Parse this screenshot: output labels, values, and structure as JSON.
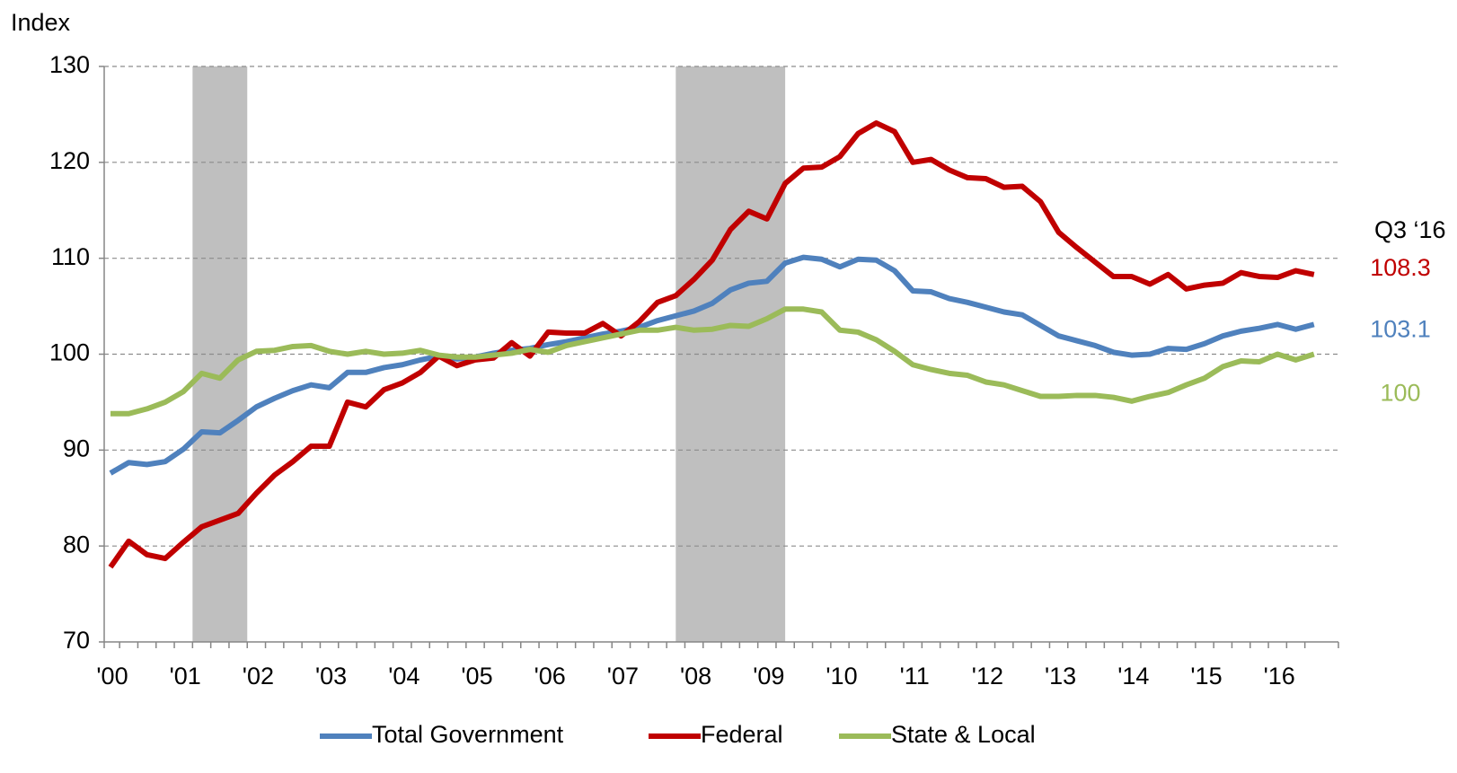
{
  "chart_data": {
    "type": "line",
    "y_label": "Index",
    "annotation": "Q3 ‘16",
    "categories": [
      "'00",
      null,
      null,
      null,
      "'01",
      null,
      null,
      null,
      "'02",
      null,
      null,
      null,
      "'03",
      null,
      null,
      null,
      "'04",
      null,
      null,
      null,
      "'05",
      null,
      null,
      null,
      "'06",
      null,
      null,
      null,
      "'07",
      null,
      null,
      null,
      "'08",
      null,
      null,
      null,
      "'09",
      null,
      null,
      null,
      "'10",
      null,
      null,
      null,
      "'11",
      null,
      null,
      null,
      "'12",
      null,
      null,
      null,
      "'13",
      null,
      null,
      null,
      "'14",
      null,
      null,
      null,
      "'15",
      null,
      null,
      null,
      "'16",
      null,
      null
    ],
    "series": [
      {
        "name": "Total Government",
        "color": "#4f81bd",
        "values": [
          87.6,
          88.7,
          88.5,
          88.8,
          90.1,
          91.9,
          91.8,
          93.1,
          94.5,
          95.4,
          96.2,
          96.8,
          96.5,
          98.1,
          98.1,
          98.6,
          98.9,
          99.4,
          99.8,
          99.5,
          99.7,
          100.1,
          100.4,
          100.6,
          101.0,
          101.3,
          101.7,
          102.1,
          102.4,
          102.8,
          103.5,
          104.0,
          104.5,
          105.3,
          106.7,
          107.4,
          107.6,
          109.5,
          110.1,
          109.9,
          109.1,
          109.9,
          109.8,
          108.7,
          106.6,
          106.5,
          105.8,
          105.4,
          104.9,
          104.4,
          104.1,
          103.0,
          101.9,
          101.4,
          100.9,
          100.2,
          99.9,
          100.0,
          100.6,
          100.5,
          101.1,
          101.9,
          102.4,
          102.7,
          103.1,
          102.6,
          103.1
        ]
      },
      {
        "name": "Federal",
        "color": "#c00000",
        "values": [
          77.8,
          80.5,
          79.1,
          78.7,
          80.4,
          82.0,
          82.7,
          83.4,
          85.5,
          87.4,
          88.8,
          90.4,
          90.4,
          95.0,
          94.5,
          96.3,
          97.0,
          98.1,
          99.8,
          98.8,
          99.4,
          99.6,
          101.2,
          99.8,
          102.3,
          102.2,
          102.2,
          103.2,
          101.9,
          103.4,
          105.4,
          106.1,
          107.8,
          109.8,
          113.0,
          114.9,
          114.1,
          117.8,
          119.4,
          119.5,
          120.6,
          123.0,
          124.1,
          123.2,
          120.0,
          120.3,
          119.2,
          118.4,
          118.3,
          117.4,
          117.5,
          115.9,
          112.7,
          111.1,
          109.6,
          108.1,
          108.1,
          107.3,
          108.3,
          106.8,
          107.2,
          107.4,
          108.5,
          108.1,
          108.0,
          108.7,
          108.3
        ]
      },
      {
        "name": "State & Local",
        "color": "#9bbb59",
        "values": [
          93.8,
          93.8,
          94.3,
          95.0,
          96.1,
          98.0,
          97.5,
          99.4,
          100.3,
          100.4,
          100.8,
          100.9,
          100.3,
          100.0,
          100.3,
          100.0,
          100.1,
          100.4,
          99.9,
          99.7,
          99.7,
          99.9,
          100.1,
          100.5,
          100.2,
          100.9,
          101.3,
          101.7,
          102.1,
          102.5,
          102.5,
          102.8,
          102.5,
          102.6,
          103.0,
          102.9,
          103.7,
          104.7,
          104.7,
          104.4,
          102.5,
          102.3,
          101.5,
          100.3,
          98.9,
          98.4,
          98.0,
          97.8,
          97.1,
          96.8,
          96.2,
          95.6,
          95.6,
          95.7,
          95.7,
          95.5,
          95.1,
          95.6,
          96.0,
          96.8,
          97.5,
          98.7,
          99.3,
          99.2,
          100.0,
          99.4,
          100.0
        ]
      }
    ],
    "shaded_periods": [
      [
        4.5,
        7.5
      ],
      [
        31,
        37
      ]
    ],
    "shade_color": "#bfbfbf",
    "ylim": [
      70,
      130
    ],
    "yticks": [
      70,
      80,
      90,
      100,
      110,
      120,
      130
    ],
    "grid": true,
    "legend": "bottom"
  }
}
